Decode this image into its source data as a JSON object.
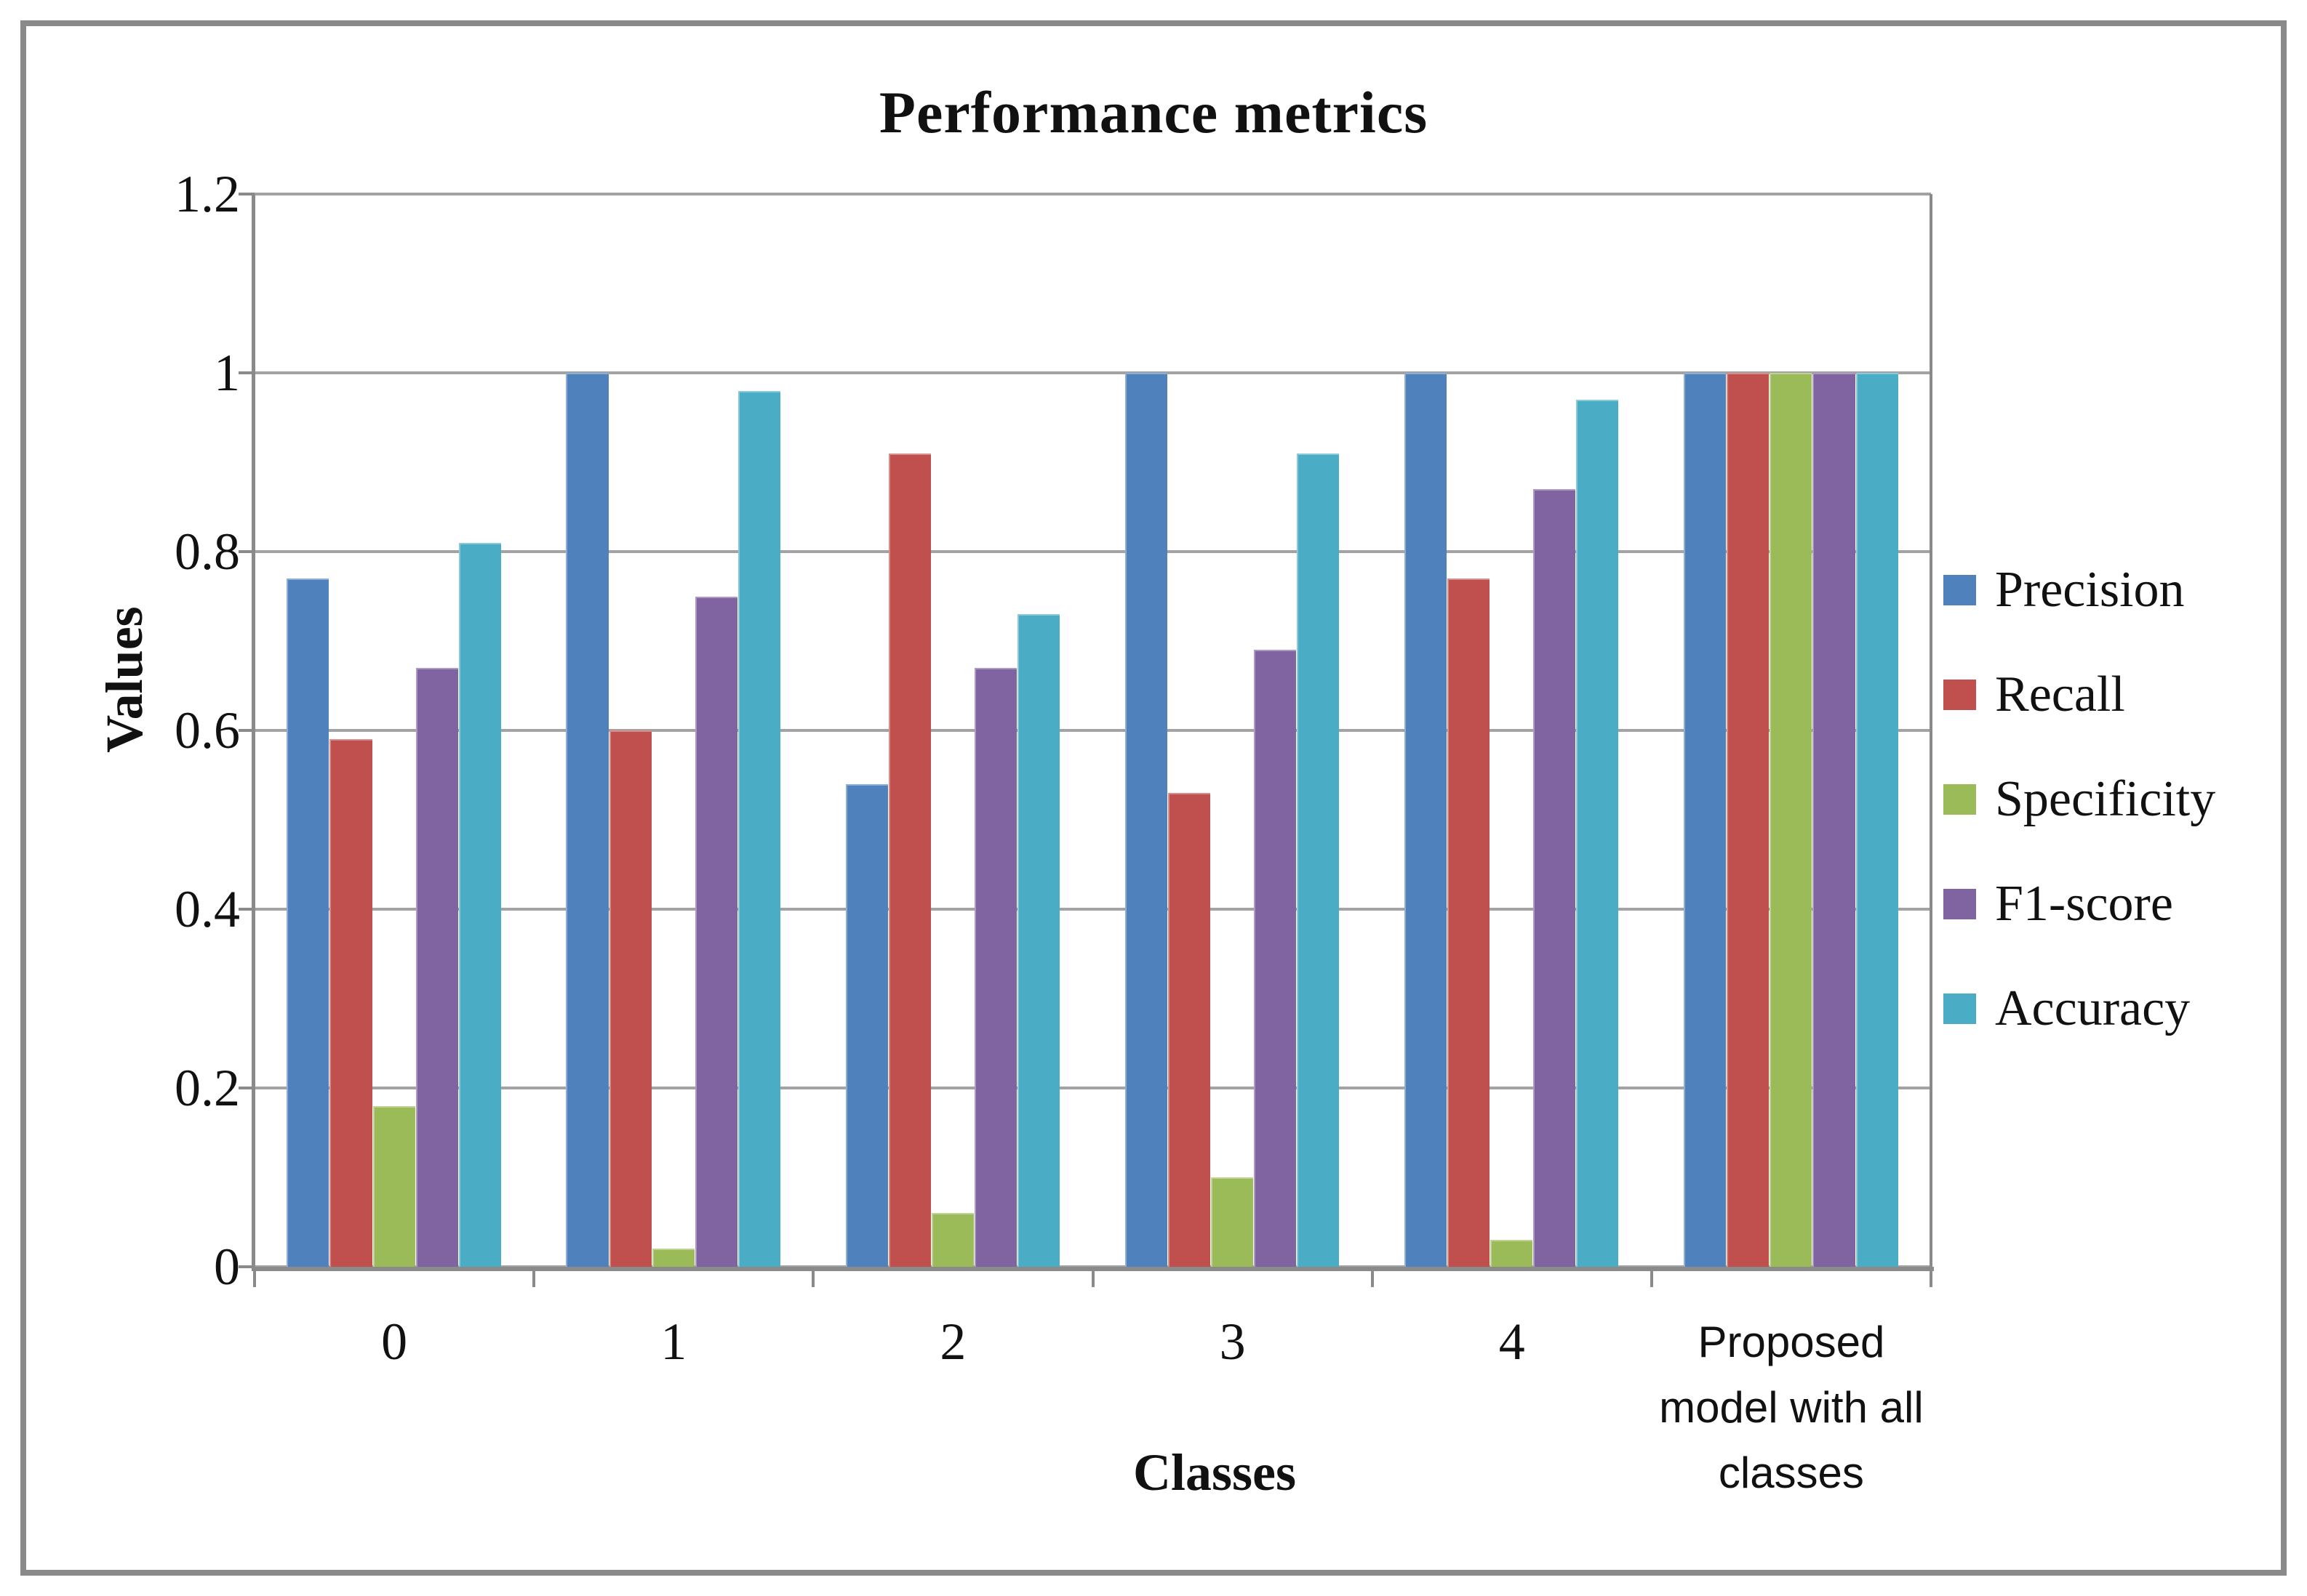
{
  "figure": {
    "background": "#ffffff",
    "frame_border_color": "#8a8a8a",
    "gridline_color": "#a3a3a3",
    "axis_color": "#8a8a8a"
  },
  "chart_data": {
    "type": "bar",
    "title": "Performance metrics",
    "xlabel": "Classes",
    "ylabel": "Values",
    "categories": [
      "0",
      "1",
      "2",
      "3",
      "4",
      "Proposed model with all classes"
    ],
    "series": [
      {
        "name": "Precision",
        "color": "#4F81BD",
        "values": [
          0.77,
          1.0,
          0.54,
          1.0,
          1.0,
          1.0
        ]
      },
      {
        "name": "Recall",
        "color": "#C0504D",
        "values": [
          0.59,
          0.6,
          0.91,
          0.53,
          0.77,
          1.0
        ]
      },
      {
        "name": "Specificity",
        "color": "#9BBB59",
        "values": [
          0.18,
          0.02,
          0.06,
          0.1,
          0.03,
          1.0
        ]
      },
      {
        "name": "F1-score",
        "color": "#8064A2",
        "values": [
          0.67,
          0.75,
          0.67,
          0.69,
          0.87,
          1.0
        ]
      },
      {
        "name": "Accuracy",
        "color": "#4BACC6",
        "values": [
          0.81,
          0.98,
          0.73,
          0.91,
          0.97,
          1.0
        ]
      }
    ],
    "ylim": [
      0,
      1.2
    ],
    "yticks": [
      "0",
      "0.2",
      "0.4",
      "0.6",
      "0.8",
      "1",
      "1.2"
    ],
    "ytick_values": [
      0,
      0.2,
      0.4,
      0.6,
      0.8,
      1,
      1.2
    ],
    "grid": true,
    "legend_position": "right",
    "bar_gap_ratio": 1.5
  }
}
